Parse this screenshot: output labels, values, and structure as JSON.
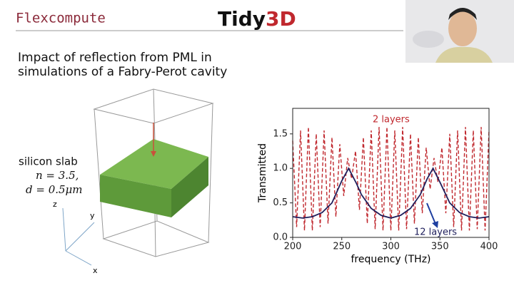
{
  "header": {
    "brand": "Flexcompute",
    "logo": [
      "Tidy",
      "3D"
    ]
  },
  "slide": {
    "title": [
      "Impact of reflection from PML in",
      "simulations of a Fabry-Perot cavity"
    ],
    "slab_label": [
      "silicon slab",
      "n = 3.5,",
      "d = 0.5μm"
    ],
    "axes": [
      "z",
      "y",
      "x"
    ]
  },
  "chart_data": {
    "type": "line",
    "x_label": "frequency (THz)",
    "y_label": "Transmitted",
    "xlim": [
      200,
      400
    ],
    "ylim": [
      0,
      1.87
    ],
    "xticks": [
      200,
      250,
      300,
      350,
      400
    ],
    "yticks": [
      {
        "value": 0,
        "label": "0.0"
      },
      0.5,
      {
        "value": 1,
        "label": "1.0"
      },
      1.5
    ],
    "series": [
      {
        "name": "2 layers",
        "color": "#c0282e",
        "style": "dashed",
        "x": [
          200,
          204,
          208,
          212,
          216,
          220,
          224,
          228,
          232,
          236,
          240,
          244,
          248,
          252,
          256,
          260,
          264,
          268,
          272,
          276,
          280,
          284,
          288,
          292,
          296,
          300,
          304,
          308,
          312,
          316,
          320,
          324,
          328,
          332,
          336,
          340,
          344,
          348,
          352,
          356,
          360,
          364,
          368,
          372,
          376,
          380,
          384,
          388,
          392,
          396,
          400
        ],
        "values": [
          1.4,
          0.15,
          1.55,
          0.1,
          1.6,
          0.1,
          1.5,
          0.15,
          1.55,
          0.2,
          1.45,
          0.3,
          1.35,
          0.6,
          1.15,
          0.85,
          1.25,
          0.4,
          1.45,
          0.2,
          1.55,
          0.12,
          1.6,
          0.1,
          1.6,
          0.1,
          1.55,
          0.1,
          1.6,
          0.12,
          1.5,
          0.2,
          1.45,
          0.35,
          1.3,
          0.7,
          1.15,
          0.8,
          1.3,
          0.35,
          1.5,
          0.15,
          1.55,
          0.1,
          1.6,
          0.1,
          1.55,
          0.12,
          1.6,
          0.1,
          1.55
        ]
      },
      {
        "name": "12 layers",
        "color": "#1f1f5c",
        "style": "solid",
        "x": [
          200,
          210,
          220,
          230,
          240,
          250,
          257,
          265,
          270,
          280,
          290,
          300,
          310,
          320,
          330,
          337,
          343,
          350,
          360,
          370,
          380,
          390,
          400
        ],
        "values": [
          0.3,
          0.28,
          0.3,
          0.36,
          0.5,
          0.82,
          1.0,
          0.78,
          0.62,
          0.42,
          0.32,
          0.28,
          0.32,
          0.42,
          0.62,
          0.85,
          1.0,
          0.8,
          0.5,
          0.36,
          0.3,
          0.28,
          0.3
        ]
      }
    ]
  }
}
